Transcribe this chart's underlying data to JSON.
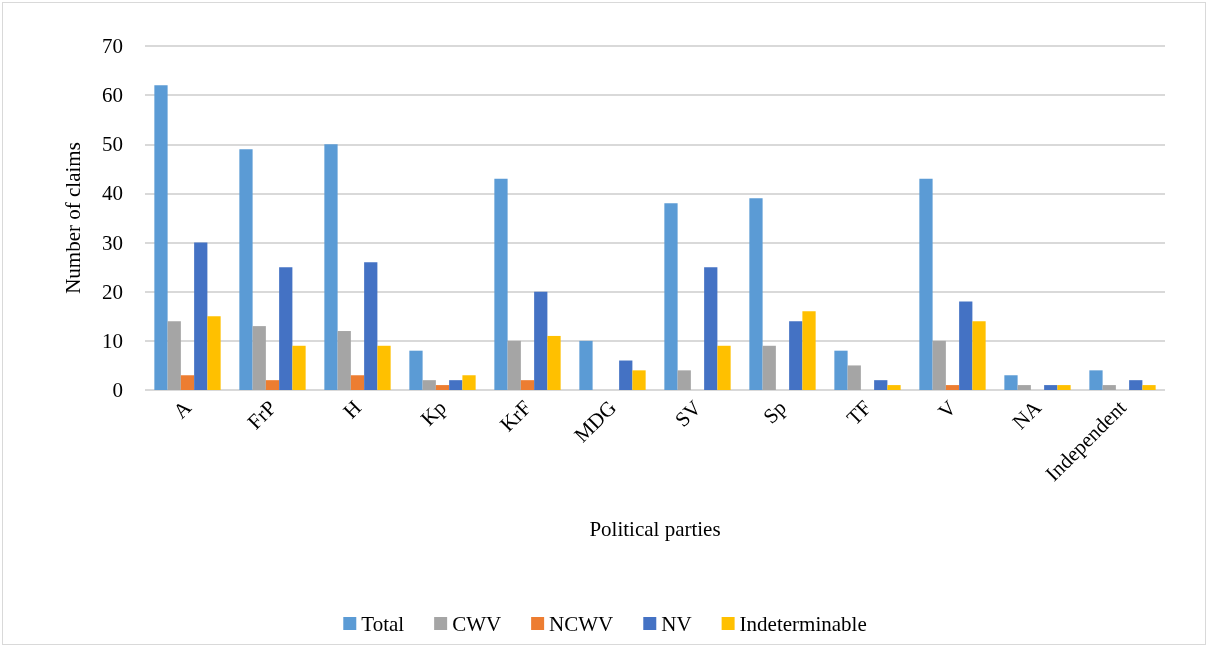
{
  "chart_data": {
    "type": "bar",
    "xlabel": "Political parties",
    "ylabel": "Number of claims",
    "categories": [
      "A",
      "FrP",
      "H",
      "Kp",
      "KrF",
      "MDG",
      "SV",
      "Sp",
      "TF",
      "V",
      "NA",
      "Independent"
    ],
    "series": [
      {
        "name": "Total",
        "color": "#5b9bd5",
        "values": [
          62,
          49,
          50,
          8,
          43,
          10,
          38,
          39,
          8,
          43,
          3,
          4
        ]
      },
      {
        "name": "CWV",
        "color": "#a5a5a5",
        "values": [
          14,
          13,
          12,
          2,
          10,
          0,
          4,
          9,
          5,
          10,
          1,
          1
        ]
      },
      {
        "name": "NCWV",
        "color": "#ed7d31",
        "values": [
          3,
          2,
          3,
          1,
          2,
          0,
          0,
          0,
          0,
          1,
          0,
          0
        ]
      },
      {
        "name": "NV",
        "color": "#4472c4",
        "values": [
          30,
          25,
          26,
          2,
          20,
          6,
          25,
          14,
          2,
          18,
          1,
          2
        ]
      },
      {
        "name": "Indeterminable",
        "color": "#ffc000",
        "values": [
          15,
          9,
          9,
          3,
          11,
          4,
          9,
          16,
          1,
          14,
          1,
          1
        ]
      }
    ],
    "ylim": [
      0,
      70
    ],
    "yticks": [
      0,
      10,
      20,
      30,
      40,
      50,
      60,
      70
    ],
    "grid": "y",
    "legend": "bottom"
  }
}
